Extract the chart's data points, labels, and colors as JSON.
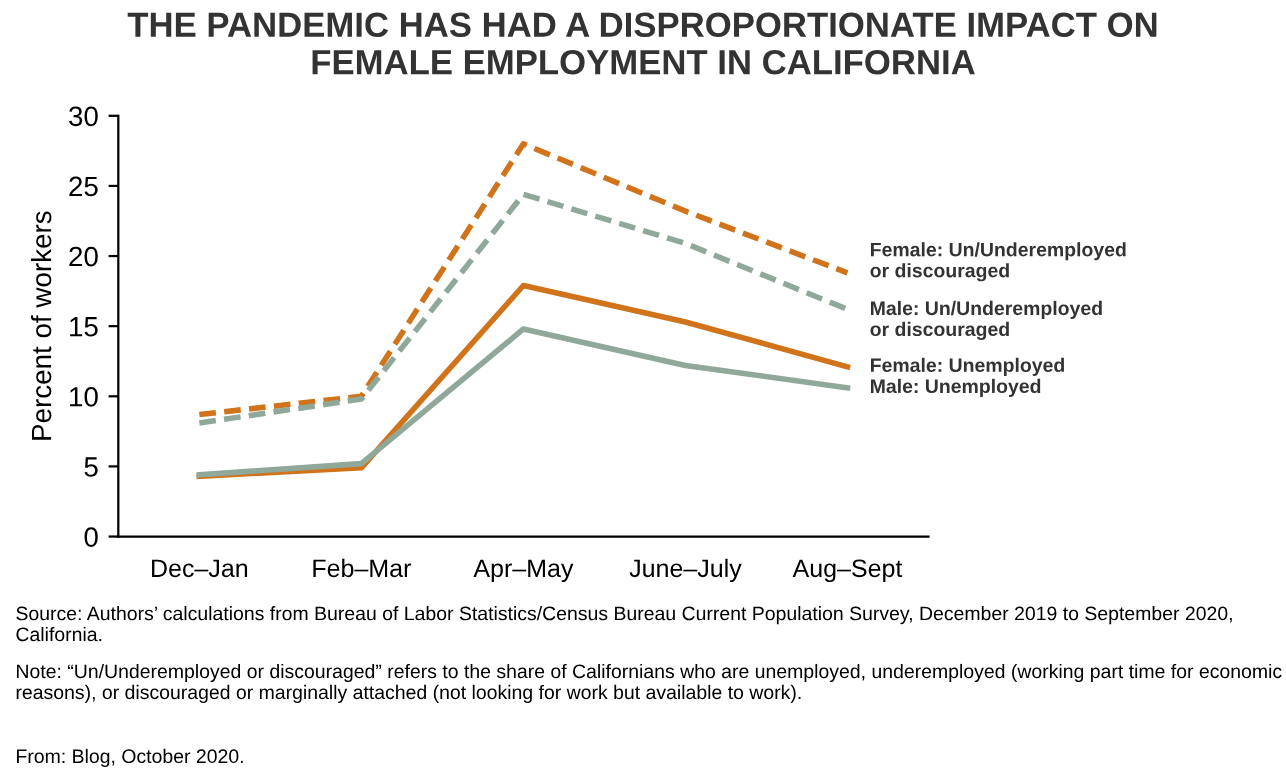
{
  "chart_data": {
    "type": "line",
    "title": "THE PANDEMIC HAS HAD A DISPROPORTIONATE IMPACT ON\nFEMALE EMPLOYMENT IN CALIFORNIA",
    "ylabel": "Percent of workers",
    "categories": [
      "Dec–Jan",
      "Feb–Mar",
      "Apr–May",
      "June–July",
      "Aug–Sept"
    ],
    "series": [
      {
        "name": "Female: Un/Underemployed\nor discouraged",
        "color": "#d0731a",
        "line_style": "dashed",
        "values": [
          8.7,
          10.0,
          28.0,
          23.2,
          18.8
        ]
      },
      {
        "name": "Male: Un/Underemployed\nor discouraged",
        "color": "#8fa89a",
        "line_style": "dashed",
        "values": [
          8.1,
          9.8,
          24.4,
          20.9,
          16.2
        ]
      },
      {
        "name": "Female: Unemployed",
        "color": "#d0731a",
        "line_style": "solid",
        "values": [
          4.3,
          4.9,
          17.9,
          15.3,
          12.1
        ]
      },
      {
        "name": "Male: Unemployed",
        "color": "#8fa89a",
        "line_style": "solid",
        "values": [
          4.4,
          5.2,
          14.8,
          12.2,
          10.6
        ]
      }
    ],
    "ylim": [
      0,
      30
    ],
    "yticks": [
      0,
      5,
      10,
      15,
      20,
      25,
      30
    ],
    "grid": false,
    "legend": false,
    "marker": "none",
    "annotations": [
      "Source: Authors’ calculations from Bureau of Labor Statistics/Census Bureau Current Population Survey, December 2019 to September 2020, California.",
      "Note: “Un/Underemployed or discouraged” refers to the share of Californians who are unemployed, underemployed (working part time for economic reasons), or discouraged or marginally attached (not looking for work but available to work).",
      "From: Blog, October 2020."
    ]
  }
}
